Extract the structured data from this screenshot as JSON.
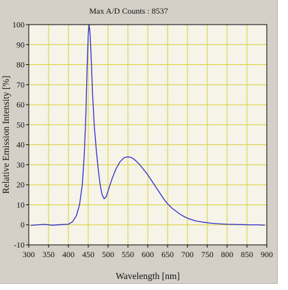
{
  "chart_data": {
    "type": "line",
    "title": "Max A/D Counts : 8537",
    "xlabel": "Wavelength [nm]",
    "ylabel": "Relative Emission Intensity [%]",
    "xlim": [
      300,
      900
    ],
    "ylim": [
      -10,
      100
    ],
    "xticks": [
      300,
      350,
      400,
      450,
      500,
      550,
      600,
      650,
      700,
      750,
      800,
      850,
      900
    ],
    "yticks": [
      -10,
      0,
      10,
      20,
      30,
      40,
      50,
      60,
      70,
      80,
      90,
      100
    ],
    "grid": true,
    "colors": {
      "background": "#f6f3e9",
      "grid": "#d6d233",
      "line": "#2b2bcc",
      "panel": "#d4d0c8"
    },
    "series": [
      {
        "x": [
          305,
          320,
          340,
          360,
          380,
          400,
          410,
          420,
          428,
          435,
          440,
          444,
          447,
          450,
          452,
          454,
          456,
          458,
          461,
          465,
          470,
          475,
          480,
          485,
          490,
          495,
          500,
          510,
          520,
          530,
          540,
          550,
          560,
          570,
          580,
          590,
          600,
          610,
          620,
          630,
          640,
          650,
          660,
          670,
          680,
          690,
          700,
          720,
          740,
          760,
          780,
          800,
          820,
          840,
          860,
          880,
          895
        ],
        "y": [
          -0.3,
          0,
          0.2,
          -0.2,
          0.1,
          0.3,
          1.5,
          4.5,
          10,
          20,
          35,
          55,
          78,
          95,
          100,
          97,
          90,
          80,
          65,
          50,
          38,
          28,
          20,
          15,
          13,
          14,
          17,
          23,
          28,
          31.5,
          33.5,
          34,
          33.5,
          32,
          30,
          27.5,
          25,
          22,
          19,
          16,
          13,
          10.5,
          8.5,
          7,
          5.5,
          4.3,
          3.3,
          2,
          1.3,
          0.8,
          0.5,
          0.3,
          0.2,
          0.1,
          0,
          0,
          -0.2
        ]
      }
    ]
  }
}
